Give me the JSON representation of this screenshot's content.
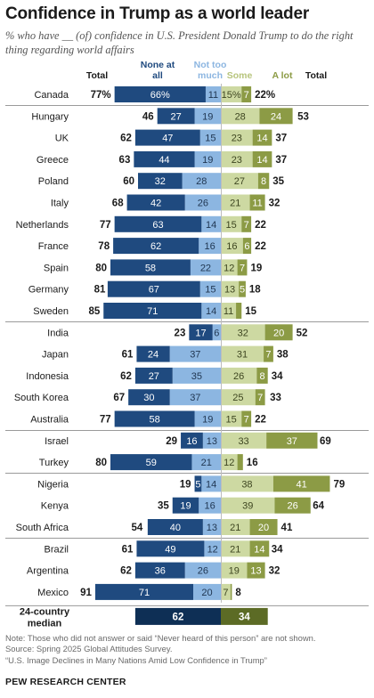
{
  "header": {
    "title": "Confidence in Trump as a world leader",
    "subtitle": "% who have __ (of) confidence in U.S. President Donald Trump to do the right thing regarding world affairs"
  },
  "legend": {
    "total_left": "Total",
    "none_line1": "None at",
    "none_line2": "all",
    "notmuch_line1": "Not too",
    "notmuch_line2": "much",
    "some": "Some",
    "alot": "A lot",
    "total_right": "Total"
  },
  "colors": {
    "none_at_all": "#1f4a7f",
    "not_too_much": "#8cb6e1",
    "some": "#cdd9a2",
    "a_lot": "#8c9b45",
    "median_none": "#0e2f55",
    "median_alot": "#5c6b25"
  },
  "chart_data": {
    "type": "bar",
    "subtype": "diverging-stacked",
    "series": [
      {
        "name": "None at all"
      },
      {
        "name": "Not too much"
      },
      {
        "name": "Some"
      },
      {
        "name": "A lot"
      }
    ],
    "rows": [
      {
        "country": "Canada",
        "none": 66,
        "notmuch": 11,
        "some": 15,
        "alot": 7,
        "neg": 77,
        "pos": 22,
        "neg_label": "77%",
        "pos_label": "22%",
        "none_label": "66%",
        "some_label": "15%"
      },
      {
        "country": "Hungary",
        "none": 27,
        "notmuch": 19,
        "some": 28,
        "alot": 24,
        "neg": 46,
        "pos": 53
      },
      {
        "country": "UK",
        "none": 47,
        "notmuch": 15,
        "some": 23,
        "alot": 14,
        "neg": 62,
        "pos": 37
      },
      {
        "country": "Greece",
        "none": 44,
        "notmuch": 19,
        "some": 23,
        "alot": 14,
        "neg": 63,
        "pos": 37
      },
      {
        "country": "Poland",
        "none": 32,
        "notmuch": 28,
        "some": 27,
        "alot": 8,
        "neg": 60,
        "pos": 35
      },
      {
        "country": "Italy",
        "none": 42,
        "notmuch": 26,
        "some": 21,
        "alot": 11,
        "neg": 68,
        "pos": 32
      },
      {
        "country": "Netherlands",
        "none": 63,
        "notmuch": 14,
        "some": 15,
        "alot": 7,
        "neg": 77,
        "pos": 22
      },
      {
        "country": "France",
        "none": 62,
        "notmuch": 16,
        "some": 16,
        "alot": 6,
        "neg": 78,
        "pos": 22
      },
      {
        "country": "Spain",
        "none": 58,
        "notmuch": 22,
        "some": 12,
        "alot": 7,
        "neg": 80,
        "pos": 19
      },
      {
        "country": "Germany",
        "none": 67,
        "notmuch": 15,
        "some": 13,
        "alot": 5,
        "neg": 81,
        "pos": 18
      },
      {
        "country": "Sweden",
        "none": 71,
        "notmuch": 14,
        "some": 11,
        "alot": 4,
        "neg": 85,
        "pos": 15,
        "alot_label": ""
      },
      {
        "country": "India",
        "none": 17,
        "notmuch": 6,
        "some": 32,
        "alot": 20,
        "neg": 23,
        "pos": 52
      },
      {
        "country": "Japan",
        "none": 24,
        "notmuch": 37,
        "some": 31,
        "alot": 7,
        "neg": 61,
        "pos": 38
      },
      {
        "country": "Indonesia",
        "none": 27,
        "notmuch": 35,
        "some": 26,
        "alot": 8,
        "neg": 62,
        "pos": 34
      },
      {
        "country": "South Korea",
        "none": 30,
        "notmuch": 37,
        "some": 25,
        "alot": 7,
        "neg": 67,
        "pos": 33
      },
      {
        "country": "Australia",
        "none": 58,
        "notmuch": 19,
        "some": 15,
        "alot": 7,
        "neg": 77,
        "pos": 22
      },
      {
        "country": "Israel",
        "none": 16,
        "notmuch": 13,
        "some": 33,
        "alot": 37,
        "neg": 29,
        "pos": 69
      },
      {
        "country": "Turkey",
        "none": 59,
        "notmuch": 21,
        "some": 12,
        "alot": 4,
        "neg": 80,
        "pos": 16,
        "alot_label": ""
      },
      {
        "country": "Nigeria",
        "none": 5,
        "notmuch": 14,
        "some": 38,
        "alot": 41,
        "neg": 19,
        "pos": 79
      },
      {
        "country": "Kenya",
        "none": 19,
        "notmuch": 16,
        "some": 39,
        "alot": 26,
        "neg": 35,
        "pos": 64
      },
      {
        "country": "South Africa",
        "none": 40,
        "notmuch": 13,
        "some": 21,
        "alot": 20,
        "neg": 54,
        "pos": 41
      },
      {
        "country": "Brazil",
        "none": 49,
        "notmuch": 12,
        "some": 21,
        "alot": 14,
        "neg": 61,
        "pos": 34
      },
      {
        "country": "Argentina",
        "none": 36,
        "notmuch": 26,
        "some": 19,
        "alot": 13,
        "neg": 62,
        "pos": 32
      },
      {
        "country": "Mexico",
        "none": 71,
        "notmuch": 20,
        "some": 7,
        "alot": 1,
        "neg": 91,
        "pos": 8,
        "alot_label": ""
      }
    ],
    "median": {
      "label_line1": "24-country",
      "label_line2": "median",
      "neg": 62,
      "pos": 34
    },
    "group_breaks_after": [
      0,
      10,
      15,
      17,
      20
    ]
  },
  "footer": {
    "note": "Note: Those who did not answer or said “Never heard of this person” are not shown.",
    "source": "Source: Spring 2025 Global Attitudes Survey.",
    "report": "“U.S. Image Declines in Many Nations Amid Low Confidence in Trump”",
    "brand": "PEW RESEARCH CENTER"
  }
}
